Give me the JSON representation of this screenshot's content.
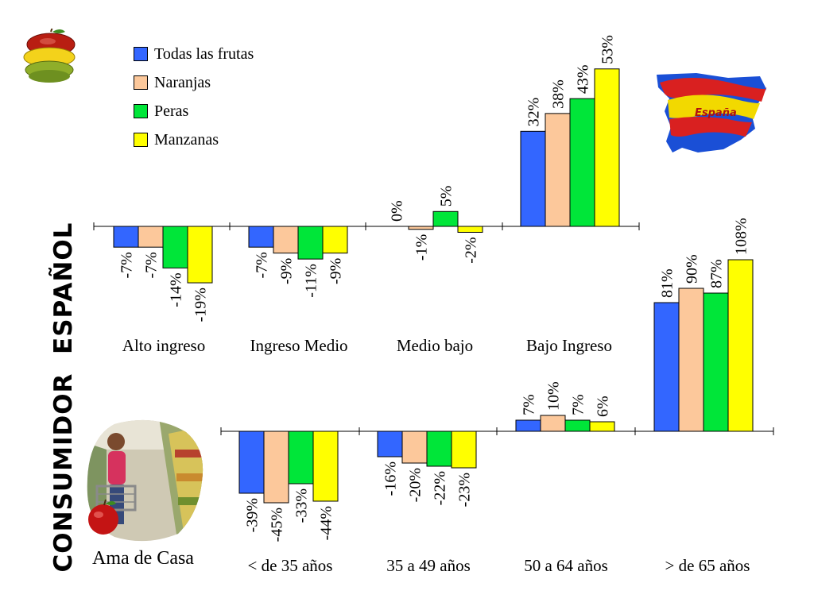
{
  "vertical_title": "CONSUMIDOR  ESPAÑOL",
  "map_label": "España",
  "person_caption": "Ama de Casa",
  "colors": {
    "Todas las frutas": "#3366ff",
    "Naranjas": "#fcc89b",
    "Peras": "#00e639",
    "Manzanas": "#ffff00",
    "map_red": "#d92020",
    "map_yellow": "#f2d900",
    "map_blue": "#1a4fd6"
  },
  "icons": [
    "fruit-stack-icon",
    "spain-map-icon",
    "shopper-photo-icon"
  ],
  "legend": [
    "Todas las frutas",
    "Naranjas",
    "Peras",
    "Manzanas"
  ],
  "chart_data": [
    {
      "type": "bar",
      "title": "",
      "categories": [
        "Alto ingreso",
        "Ingreso Medio",
        "Medio bajo",
        "Bajo  Ingreso"
      ],
      "series": [
        {
          "name": "Todas las frutas",
          "values": [
            -7,
            -7,
            0,
            32
          ],
          "labels": [
            "-7%",
            "-7%",
            "0%",
            "32%"
          ]
        },
        {
          "name": "Naranjas",
          "values": [
            -7,
            -9,
            -1,
            38
          ],
          "labels": [
            "-7%",
            "-9%",
            "-1%",
            "38%"
          ]
        },
        {
          "name": "Peras",
          "values": [
            -14,
            -11,
            5,
            43
          ],
          "labels": [
            "-14%",
            "-11%",
            "5%",
            "43%"
          ]
        },
        {
          "name": "Manzanas",
          "values": [
            -19,
            -9,
            -2,
            53
          ],
          "labels": [
            "-19%",
            "-9%",
            "-2%",
            "53%"
          ]
        }
      ],
      "grid": false
    },
    {
      "type": "bar",
      "title": "",
      "categories": [
        "< de 35 años",
        "35 a 49 años",
        "50 a 64 años",
        "> de 65 años"
      ],
      "series": [
        {
          "name": "Todas las frutas",
          "values": [
            -39,
            -16,
            7,
            81
          ],
          "labels": [
            "-39%",
            "-16%",
            "7%",
            "81%"
          ]
        },
        {
          "name": "Naranjas",
          "values": [
            -45,
            -20,
            10,
            90
          ],
          "labels": [
            "-45%",
            "-20%",
            "10%",
            "90%"
          ]
        },
        {
          "name": "Peras",
          "values": [
            -33,
            -22,
            7,
            87
          ],
          "labels": [
            "-33%",
            "-22%",
            "7%",
            "87%"
          ]
        },
        {
          "name": "Manzanas",
          "values": [
            -44,
            -23,
            6,
            108
          ],
          "labels": [
            "-44%",
            "-23%",
            "6%",
            "108%"
          ]
        }
      ],
      "grid": false
    }
  ]
}
